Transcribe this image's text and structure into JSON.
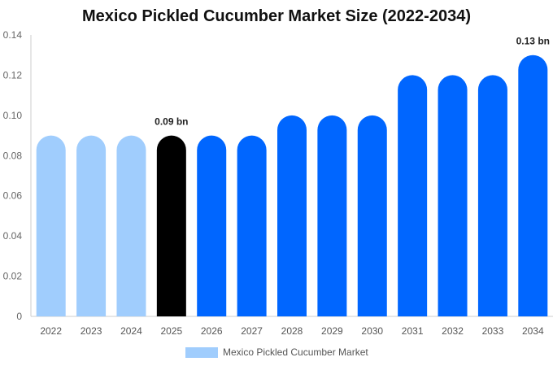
{
  "chart_data": {
    "type": "bar",
    "title": "Mexico Pickled Cucumber Market Size (2022-2034)",
    "xlabel": "",
    "ylabel": "",
    "ylim": [
      0,
      0.14
    ],
    "yticks": [
      "0",
      "0.02",
      "0.04",
      "0.06",
      "0.08",
      "0.10",
      "0.12",
      "0.14"
    ],
    "categories": [
      "2022",
      "2023",
      "2024",
      "2025",
      "2026",
      "2027",
      "2028",
      "2029",
      "2030",
      "2031",
      "2032",
      "2033",
      "2034"
    ],
    "series": [
      {
        "name": "Mexico Pickled Cucumber Market",
        "values": [
          0.09,
          0.09,
          0.09,
          0.09,
          0.09,
          0.09,
          0.1,
          0.1,
          0.1,
          0.12,
          0.12,
          0.12,
          0.13
        ]
      }
    ],
    "bar_colors": [
      "#a0cdfd",
      "#a0cdfd",
      "#a0cdfd",
      "#000000",
      "#0066ff",
      "#0066ff",
      "#0066ff",
      "#0066ff",
      "#0066ff",
      "#0066ff",
      "#0066ff",
      "#0066ff",
      "#0066ff"
    ],
    "annotations": [
      {
        "category": "2025",
        "text": "0.09 bn"
      },
      {
        "category": "2034",
        "text": "0.13 bn"
      }
    ],
    "legend": {
      "position": "bottom",
      "color": "#a0cdfd"
    },
    "grid": false
  }
}
